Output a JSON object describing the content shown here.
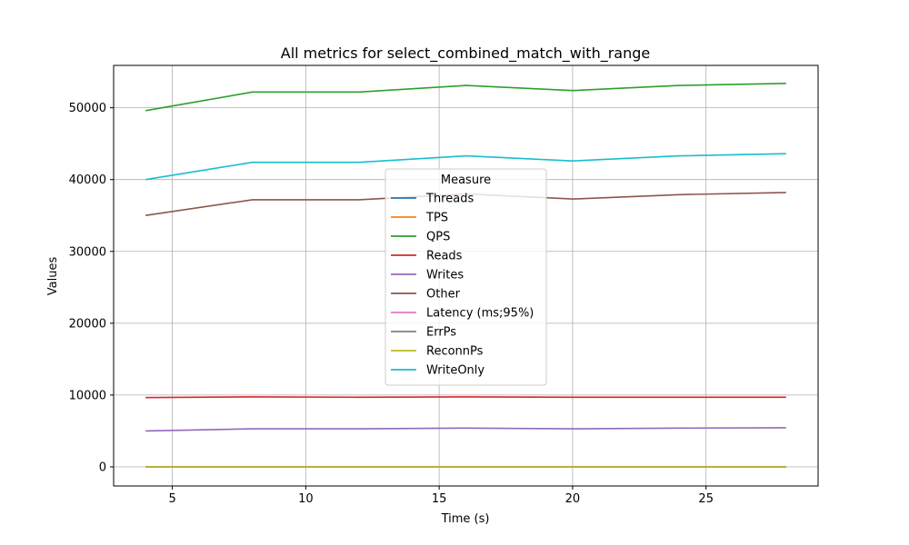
{
  "chart_data": {
    "type": "line",
    "title": "All metrics for select_combined_match_with_range",
    "xlabel": "Time (s)",
    "ylabel": "Values",
    "xlim": [
      2.8,
      29.2
    ],
    "ylim": [
      -2660,
      55900
    ],
    "xticks": [
      5,
      10,
      15,
      20,
      25
    ],
    "yticks": [
      0,
      10000,
      20000,
      30000,
      40000,
      50000
    ],
    "grid": true,
    "legend": {
      "title": "Measure",
      "placement": "center"
    },
    "x": [
      4,
      8,
      12,
      16,
      20,
      24,
      28
    ],
    "series": [
      {
        "name": "Threads",
        "color": "#1f77b4",
        "values": [
          16,
          16,
          16,
          16,
          16,
          16,
          16
        ]
      },
      {
        "name": "TPS",
        "color": "#ff7f0e",
        "values": [
          20,
          21,
          21,
          21,
          21,
          21,
          21
        ]
      },
      {
        "name": "QPS",
        "color": "#2ca02c",
        "values": [
          49600,
          52200,
          52200,
          53100,
          52400,
          53100,
          53400
        ]
      },
      {
        "name": "Reads",
        "color": "#d62728",
        "values": [
          9650,
          9750,
          9700,
          9750,
          9700,
          9700,
          9700
        ]
      },
      {
        "name": "Writes",
        "color": "#9467bd",
        "values": [
          5000,
          5300,
          5300,
          5400,
          5300,
          5400,
          5450
        ]
      },
      {
        "name": "Other",
        "color": "#8c564b",
        "values": [
          35000,
          37200,
          37200,
          38000,
          37300,
          37900,
          38200
        ]
      },
      {
        "name": "Latency (ms;95%)",
        "color": "#e377c2",
        "values": [
          10,
          10,
          10,
          10,
          10,
          10,
          10
        ]
      },
      {
        "name": "ErrPs",
        "color": "#7f7f7f",
        "values": [
          0,
          0,
          0,
          0,
          0,
          0,
          0
        ]
      },
      {
        "name": "ReconnPs",
        "color": "#bcbd22",
        "values": [
          0,
          0,
          0,
          0,
          0,
          0,
          0
        ]
      },
      {
        "name": "WriteOnly",
        "color": "#17becf",
        "values": [
          40000,
          42400,
          42400,
          43300,
          42600,
          43300,
          43600
        ]
      }
    ]
  }
}
